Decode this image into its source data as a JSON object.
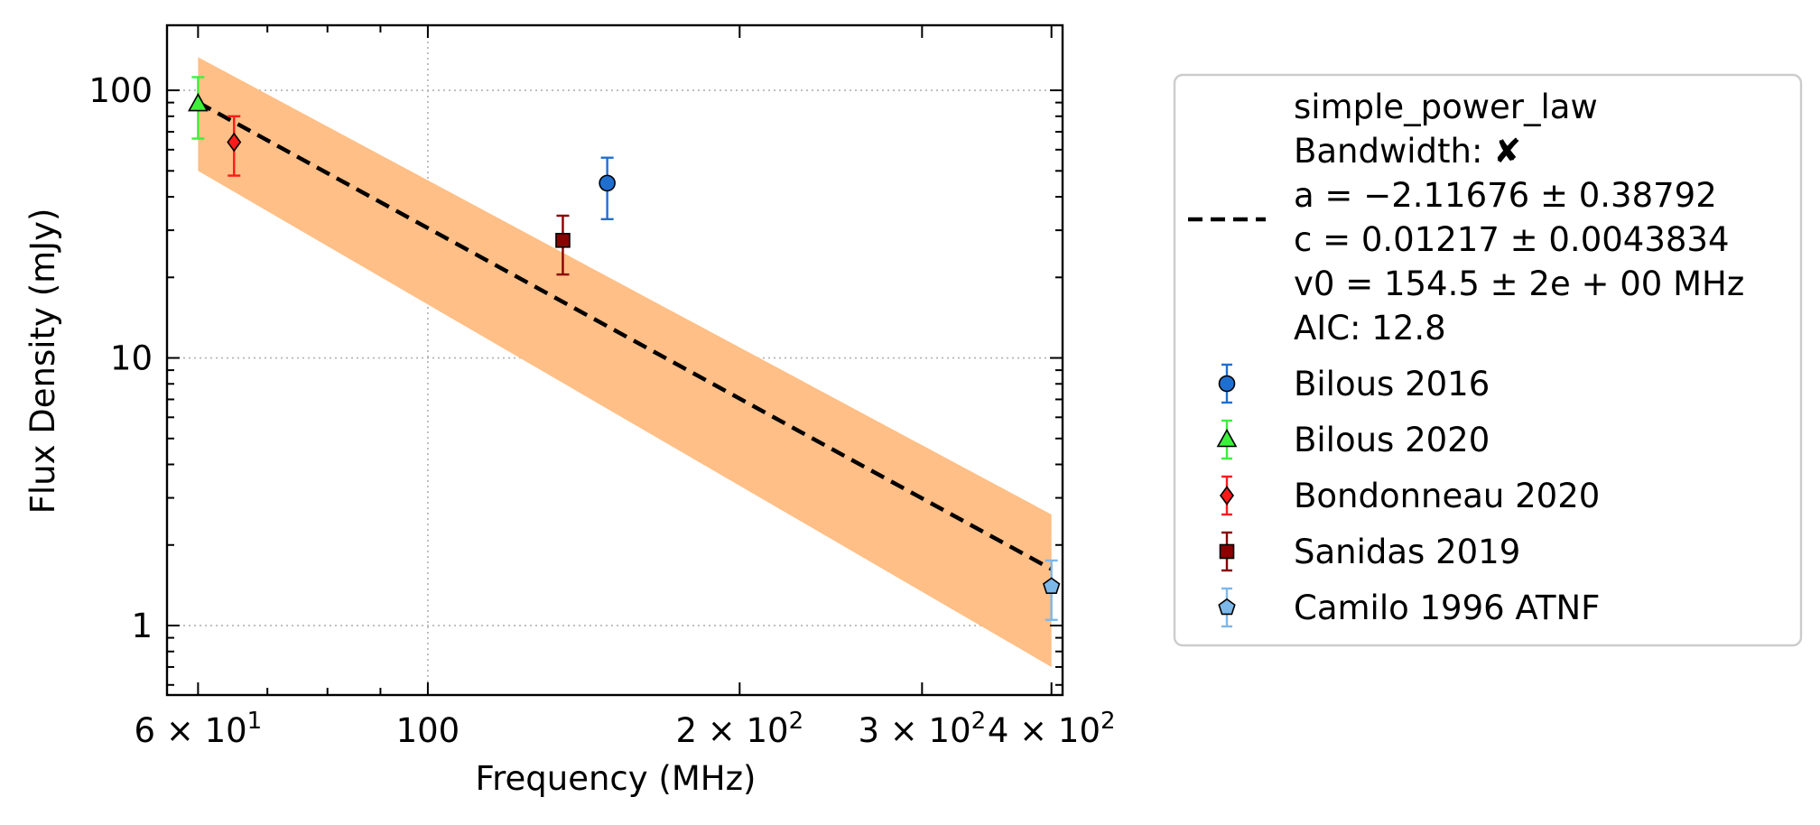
{
  "chart_data": {
    "type": "scatter",
    "title": "",
    "xlabel": "Frequency (MHz)",
    "ylabel": "Flux Density (mJy)",
    "xscale": "log",
    "yscale": "log",
    "xlim": [
      56,
      410
    ],
    "ylim": [
      0.55,
      175
    ],
    "grid": "major, dotted",
    "legend_position": "outside-right",
    "x_ticks": [
      {
        "value": 60,
        "mantissa": "6",
        "base": "10",
        "exp": "1"
      },
      {
        "value": 100,
        "label": "100"
      },
      {
        "value": 200,
        "mantissa": "2",
        "base": "10",
        "exp": "2"
      },
      {
        "value": 300,
        "mantissa": "3",
        "base": "10",
        "exp": "2"
      },
      {
        "value": 400,
        "mantissa": "4",
        "base": "10",
        "exp": "2"
      }
    ],
    "y_ticks": [
      {
        "value": 1,
        "label": "1"
      },
      {
        "value": 10,
        "label": "10"
      },
      {
        "value": 100,
        "label": "100"
      }
    ],
    "fit": {
      "label_lines": [
        "simple_power_law",
        "Bandwidth: ✘",
        "a = −2.11676 ± 0.38792",
        "c = 0.01217 ± 0.0043834",
        "v0 = 154.5 ± 2e + 00 MHz",
        "AIC: 12.8"
      ],
      "a": -2.11676,
      "c": 0.01217,
      "v0_mhz": 154.5,
      "x_range": [
        60,
        400
      ],
      "color": "#000000",
      "band_color": "#ffbf86",
      "band_start": [
        50,
        133
      ],
      "band_end": [
        0.7,
        2.6
      ]
    },
    "series": [
      {
        "name": "Bilous 2016",
        "marker": "circle",
        "color": "#1f6fd1",
        "x": [
          149
        ],
        "y": [
          45
        ],
        "yerr_low": [
          33
        ],
        "yerr_high": [
          56
        ]
      },
      {
        "name": "Bilous 2020",
        "marker": "triangle",
        "color": "#3cf03c",
        "err_color": "#3cf03c",
        "x": [
          60
        ],
        "y": [
          89
        ],
        "yerr_low": [
          66
        ],
        "yerr_high": [
          112
        ]
      },
      {
        "name": "Bondonneau 2020",
        "marker": "diamond",
        "color": "#ff1a1a",
        "x": [
          65
        ],
        "y": [
          64
        ],
        "yerr_low": [
          48
        ],
        "yerr_high": [
          80
        ]
      },
      {
        "name": "Sanidas 2019",
        "marker": "square",
        "color": "#8b0000",
        "x": [
          135
        ],
        "y": [
          27.5
        ],
        "yerr_low": [
          20.5
        ],
        "yerr_high": [
          34
        ]
      },
      {
        "name": "Camilo 1996 ATNF",
        "marker": "pentagon",
        "color": "#7db8ea",
        "x": [
          400
        ],
        "y": [
          1.4
        ],
        "yerr_low": [
          1.05
        ],
        "yerr_high": [
          1.75
        ]
      }
    ]
  }
}
